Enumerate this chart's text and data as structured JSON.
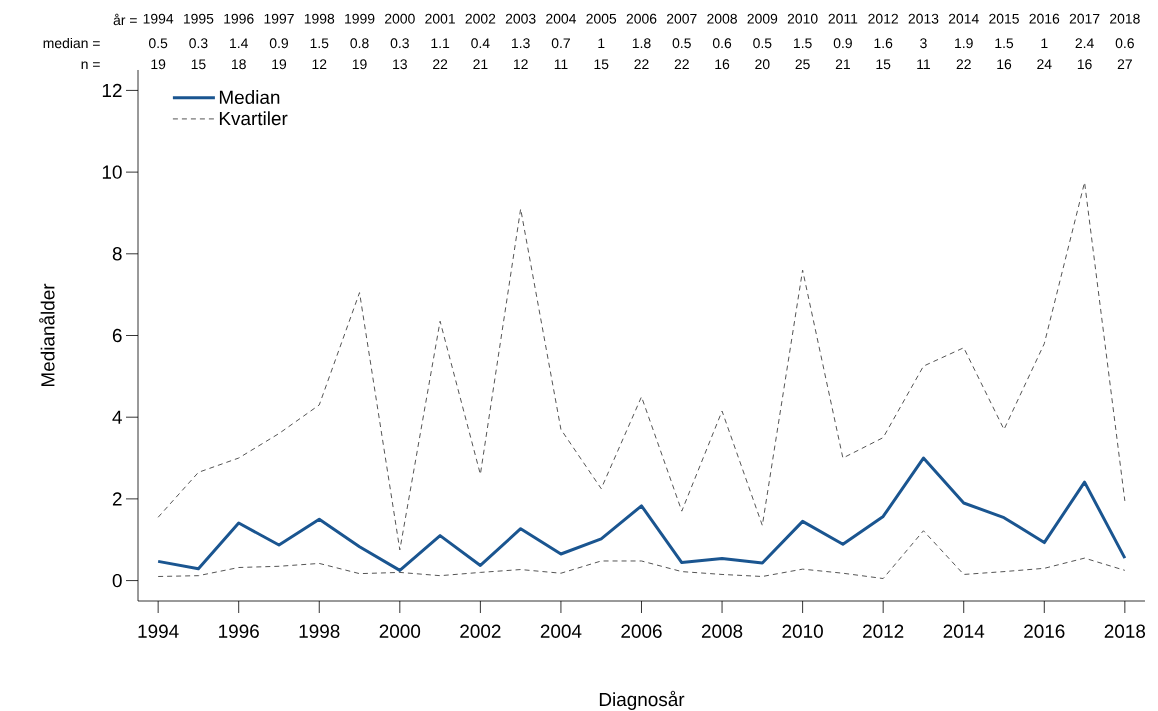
{
  "chart_data": {
    "type": "line",
    "x": [
      1994,
      1995,
      1996,
      1997,
      1998,
      1999,
      2000,
      2001,
      2002,
      2003,
      2004,
      2005,
      2006,
      2007,
      2008,
      2009,
      2010,
      2011,
      2012,
      2013,
      2014,
      2015,
      2016,
      2017,
      2018
    ],
    "xlim": [
      1993.5,
      2018.5
    ],
    "xticks": [
      1994,
      1996,
      1998,
      2000,
      2002,
      2004,
      2006,
      2008,
      2010,
      2012,
      2014,
      2016,
      2018
    ],
    "ylim": [
      -0.5,
      12.5
    ],
    "yticks": [
      0,
      2,
      4,
      6,
      8,
      10,
      12
    ],
    "x2lim": [
      1993.5,
      2018.5
    ],
    "x2ticks": [
      1994,
      1995,
      1996,
      1997,
      1998,
      1999,
      2000,
      2001,
      2002,
      2003,
      2004,
      2005,
      2006,
      2007,
      2008,
      2009,
      2010,
      2011,
      2012,
      2013,
      2014,
      2015,
      2016,
      2017,
      2018
    ],
    "x2label": "år =",
    "xlabel": "Diagnosår",
    "ylabel": "Medianålder",
    "legend": "top left",
    "grid": false,
    "marker": "none",
    "series": [
      {
        "name": "Median",
        "color": "#1a5590",
        "line_style": "solid",
        "values": [
          0.47,
          0.29,
          1.41,
          0.87,
          1.5,
          0.83,
          0.25,
          1.1,
          0.37,
          1.27,
          0.65,
          1.02,
          1.83,
          0.44,
          0.54,
          0.43,
          1.45,
          0.89,
          1.57,
          3.0,
          1.9,
          1.54,
          0.93,
          2.41,
          0.55
        ]
      },
      {
        "name": "Kvartiler",
        "color": "#555555",
        "line_style": "dashed",
        "values": [
          1.55,
          2.65,
          3.0,
          3.6,
          4.3,
          7.05,
          0.75,
          6.35,
          2.6,
          9.1,
          3.7,
          2.25,
          4.5,
          1.7,
          4.15,
          1.35,
          7.6,
          3.0,
          3.5,
          5.25,
          5.7,
          3.7,
          5.8,
          9.75,
          1.95
        ]
      },
      {
        "color": "#555555",
        "line_style": "dashed",
        "values": [
          0.1,
          0.12,
          0.32,
          0.35,
          0.42,
          0.17,
          0.2,
          0.12,
          0.2,
          0.27,
          0.18,
          0.48,
          0.48,
          0.22,
          0.15,
          0.1,
          0.28,
          0.18,
          0.05,
          1.22,
          0.15,
          0.22,
          0.3,
          0.55,
          0.25
        ]
      }
    ],
    "annotations": [
      "median =",
      "0.5",
      "0.3",
      "1.4",
      "0.9",
      "1.5",
      "0.8",
      "0.3",
      "1.1",
      "0.4",
      "1.3",
      "0.7",
      "1",
      "1.8",
      "0.5",
      "0.6",
      "0.5",
      "1.5",
      "0.9",
      "1.6",
      "3",
      "1.9",
      "1.5",
      "1",
      "2.4",
      "0.6",
      "n =",
      "19",
      "15",
      "18",
      "19",
      "12",
      "19",
      "13",
      "22",
      "21",
      "12",
      "11",
      "15",
      "22",
      "22",
      "16",
      "20",
      "25",
      "21",
      "15",
      "11",
      "22",
      "16",
      "24",
      "16",
      "27"
    ]
  }
}
